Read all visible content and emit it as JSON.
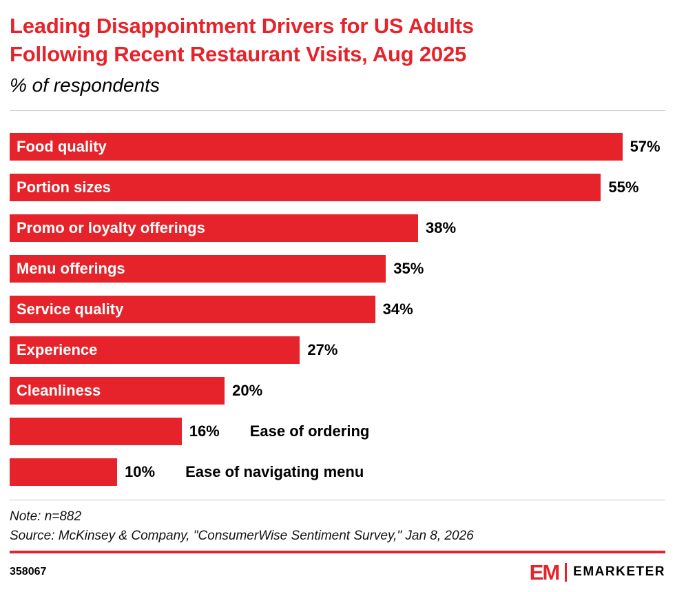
{
  "chart_data": {
    "type": "bar",
    "orientation": "horizontal",
    "title": "Leading Disappointment Drivers for US Adults Following Recent Restaurant Visits, Aug 2025",
    "title_lines": [
      "Leading Disappointment Drivers for US Adults",
      "Following Recent Restaurant Visits, Aug 2025"
    ],
    "subtitle": "% of respondents",
    "value_suffix": "%",
    "xlim": [
      0,
      61
    ],
    "grid": false,
    "legend": false,
    "categories": [
      "Food quality",
      "Portion sizes",
      "Promo or loyalty offerings",
      "Menu offerings",
      "Service quality",
      "Experience",
      "Cleanliness",
      "Ease of ordering",
      "Ease of navigating menu"
    ],
    "values": [
      57,
      55,
      38,
      35,
      34,
      27,
      20,
      16,
      10
    ],
    "rows": [
      {
        "label": "Food quality",
        "value": 57,
        "label_position": "inside"
      },
      {
        "label": "Portion sizes",
        "value": 55,
        "label_position": "inside"
      },
      {
        "label": "Promo or loyalty offerings",
        "value": 38,
        "label_position": "inside"
      },
      {
        "label": "Menu offerings",
        "value": 35,
        "label_position": "inside"
      },
      {
        "label": "Service quality",
        "value": 34,
        "label_position": "inside"
      },
      {
        "label": "Experience",
        "value": 27,
        "label_position": "inside"
      },
      {
        "label": "Cleanliness",
        "value": 20,
        "label_position": "inside"
      },
      {
        "label": "Ease of ordering",
        "value": 16,
        "label_position": "outside"
      },
      {
        "label": "Ease of navigating menu",
        "value": 10,
        "label_position": "outside"
      }
    ]
  },
  "note": "Note: n=882",
  "source": "Source: McKinsey & Company, \"ConsumerWise Sentiment Survey,\" Jan 8, 2026",
  "footer": {
    "chart_id": "358067",
    "logo_mark": "EM",
    "logo_text": "EMARKETER"
  },
  "colors": {
    "brand_red": "#e6232a",
    "divider_gray": "#c9c9c9",
    "bar_label_white": "#ffffff",
    "text_black": "#000000"
  }
}
